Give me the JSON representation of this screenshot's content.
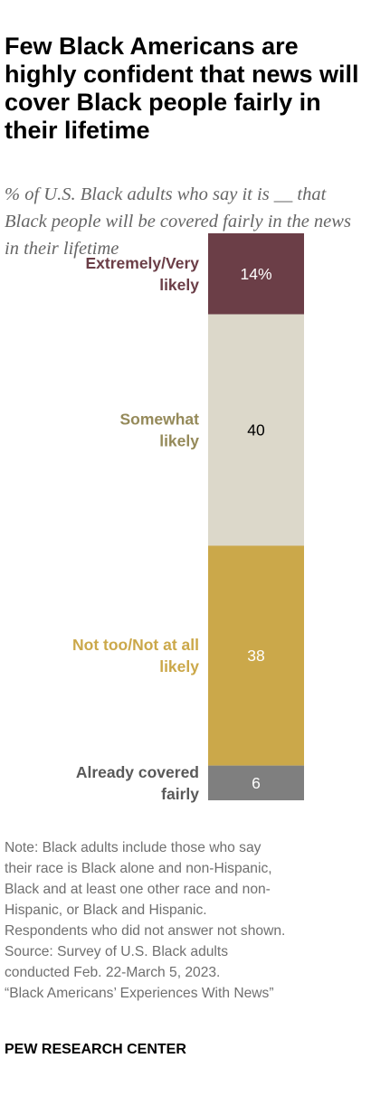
{
  "title": "Few Black Americans are highly confident that news will cover Black people fairly in their lifetime",
  "subtitle": "% of U.S. Black adults who say it is __ that Black people will be covered fairly in the news in their lifetime",
  "chart_data": {
    "type": "bar",
    "orientation": "stacked-vertical",
    "categories": [
      "Extremely/Very likely",
      "Somewhat likely",
      "Not too/Not at all likely",
      "Already covered fairly"
    ],
    "values": [
      14,
      40,
      38,
      6
    ],
    "value_labels": [
      "14%",
      "40",
      "38",
      "6"
    ],
    "colors": [
      "#6b3e47",
      "#dcd8ca",
      "#cba84a",
      "#7f7f7f"
    ],
    "label_colors": [
      "#6b3e47",
      "#958a5a",
      "#cba84a",
      "#595959"
    ],
    "value_text_colors": [
      "#ffffff",
      "#000000",
      "#ffffff",
      "#ffffff"
    ],
    "unit": "%"
  },
  "note": {
    "lines": [
      "Note: Black adults include those who say",
      "their race is Black alone and non-Hispanic,",
      "Black and at least one other race and non-",
      "Hispanic, or Black and Hispanic.",
      "Respondents who did not answer not shown.",
      "Source: Survey of U.S. Black adults",
      "conducted Feb. 22-March 5, 2023.",
      "“Black Americans’ Experiences With News”"
    ]
  },
  "brand": "PEW RESEARCH CENTER"
}
